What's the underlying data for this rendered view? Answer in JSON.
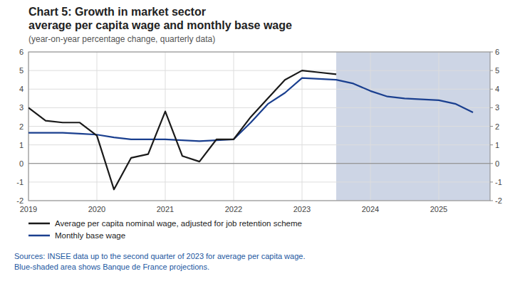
{
  "chart_data": {
    "type": "line",
    "title": [
      "Chart 5: Growth in market sector",
      "average per capita wage and monthly base wage"
    ],
    "subtitle": "(year-on-year percentage change, quarterly data)",
    "annotations": [
      "Sources: INSEE data up to the second quarter of 2023 for average per capita wage.",
      "Blue-shaded area shows Banque de France projections."
    ],
    "x": [
      2019.0,
      2019.25,
      2019.5,
      2019.75,
      2020.0,
      2020.25,
      2020.5,
      2020.75,
      2021.0,
      2021.25,
      2021.5,
      2021.75,
      2022.0,
      2022.25,
      2022.5,
      2022.75,
      2023.0,
      2023.25,
      2023.5,
      2023.75,
      2024.0,
      2024.25,
      2024.5,
      2024.75,
      2025.0,
      2025.25,
      2025.5
    ],
    "series": [
      {
        "name": "Average per capita nominal wage, adjusted for job retention scheme",
        "color": "#1a1a1a",
        "values": [
          3.0,
          2.3,
          2.2,
          2.2,
          1.5,
          -1.4,
          0.3,
          0.5,
          2.8,
          0.4,
          0.1,
          1.3,
          1.3,
          2.5,
          3.5,
          4.5,
          5.0,
          4.9,
          4.8,
          null,
          null,
          null,
          null,
          null,
          null,
          null,
          null
        ]
      },
      {
        "name": "Monthly base wage",
        "color": "#1a3f8f",
        "values": [
          1.65,
          1.65,
          1.65,
          1.6,
          1.55,
          1.4,
          1.3,
          1.3,
          1.3,
          1.25,
          1.2,
          1.25,
          1.3,
          2.2,
          3.2,
          3.8,
          4.6,
          4.55,
          4.5,
          4.3,
          3.9,
          3.6,
          3.5,
          3.45,
          3.4,
          3.2,
          2.75
        ]
      }
    ],
    "shaded": {
      "range": [
        2023.5,
        2025.75
      ],
      "color": "#cdd5e5"
    },
    "reference_lines": [
      {
        "y": 0,
        "color": "#808080"
      }
    ],
    "xlim": [
      2019.0,
      2025.75
    ],
    "xticks": [
      2019,
      2020,
      2021,
      2022,
      2023,
      2024,
      2025
    ],
    "ylim": [
      -2,
      6
    ],
    "yticks": [
      -2,
      -1,
      0,
      1,
      2,
      3,
      4,
      5,
      6
    ],
    "y2lim": [
      -2,
      6
    ],
    "y2ticks": [
      -2,
      -1,
      0,
      1,
      2,
      3,
      4,
      5,
      6
    ],
    "grid": true,
    "legend": "bottom"
  }
}
